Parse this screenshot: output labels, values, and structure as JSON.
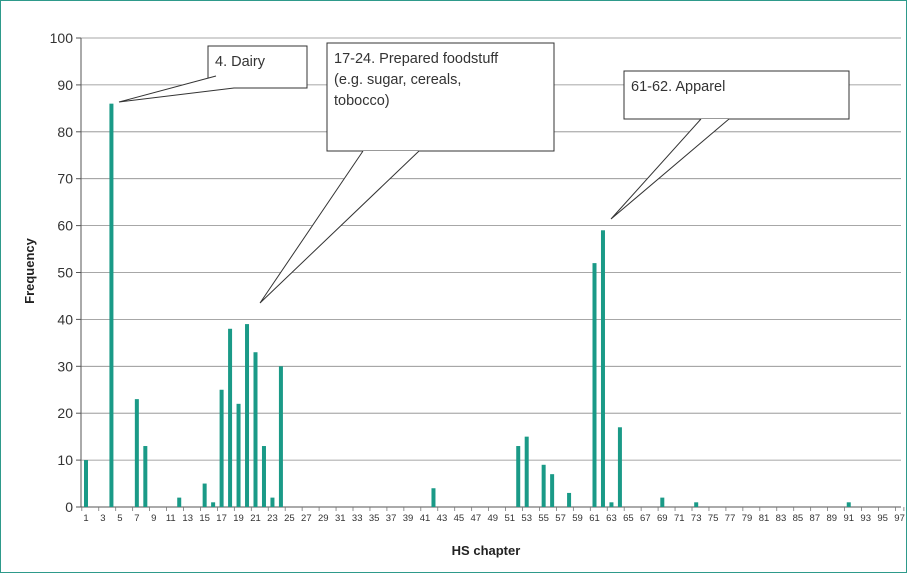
{
  "chart_data": {
    "type": "bar",
    "xlabel": "HS chapter",
    "ylabel": "Frequency",
    "ylim": [
      0,
      100
    ],
    "yticks": [
      0,
      10,
      20,
      30,
      40,
      50,
      60,
      70,
      80,
      90,
      100
    ],
    "grid": true,
    "bar_color": "#1a9a87",
    "x_tick_labels": [
      "1",
      "3",
      "5",
      "7",
      "9",
      "11",
      "13",
      "15",
      "17",
      "19",
      "21",
      "23",
      "25",
      "27",
      "29",
      "31",
      "33",
      "35",
      "37",
      "39",
      "41",
      "43",
      "45",
      "47",
      "49",
      "51",
      "53",
      "55",
      "57",
      "59",
      "61",
      "63",
      "65",
      "67",
      "69",
      "71",
      "73",
      "75",
      "77",
      "79",
      "81",
      "83",
      "85",
      "87",
      "89",
      "91",
      "93",
      "95",
      "97"
    ],
    "bars": [
      {
        "x": 1,
        "value": 10
      },
      {
        "x": 4,
        "value": 86
      },
      {
        "x": 7,
        "value": 23
      },
      {
        "x": 8,
        "value": 13
      },
      {
        "x": 12,
        "value": 2
      },
      {
        "x": 15,
        "value": 5
      },
      {
        "x": 16,
        "value": 1
      },
      {
        "x": 17,
        "value": 25
      },
      {
        "x": 18,
        "value": 38
      },
      {
        "x": 19,
        "value": 22
      },
      {
        "x": 20,
        "value": 39
      },
      {
        "x": 21,
        "value": 33
      },
      {
        "x": 22,
        "value": 13
      },
      {
        "x": 23,
        "value": 2
      },
      {
        "x": 24,
        "value": 30
      },
      {
        "x": 42,
        "value": 4
      },
      {
        "x": 52,
        "value": 13
      },
      {
        "x": 53,
        "value": 15
      },
      {
        "x": 55,
        "value": 9
      },
      {
        "x": 56,
        "value": 7
      },
      {
        "x": 58,
        "value": 3
      },
      {
        "x": 61,
        "value": 52
      },
      {
        "x": 62,
        "value": 59
      },
      {
        "x": 63,
        "value": 1
      },
      {
        "x": 64,
        "value": 17
      },
      {
        "x": 69,
        "value": 2
      },
      {
        "x": 73,
        "value": 1
      },
      {
        "x": 91,
        "value": 1
      }
    ],
    "annotations": [
      {
        "lines": [
          "4. Dairy"
        ]
      },
      {
        "lines": [
          "17-24. Prepared foodstuff",
          "(e.g. sugar, cereals,",
          "tobocco)"
        ]
      },
      {
        "lines": [
          "61-62. Apparel"
        ]
      }
    ]
  }
}
